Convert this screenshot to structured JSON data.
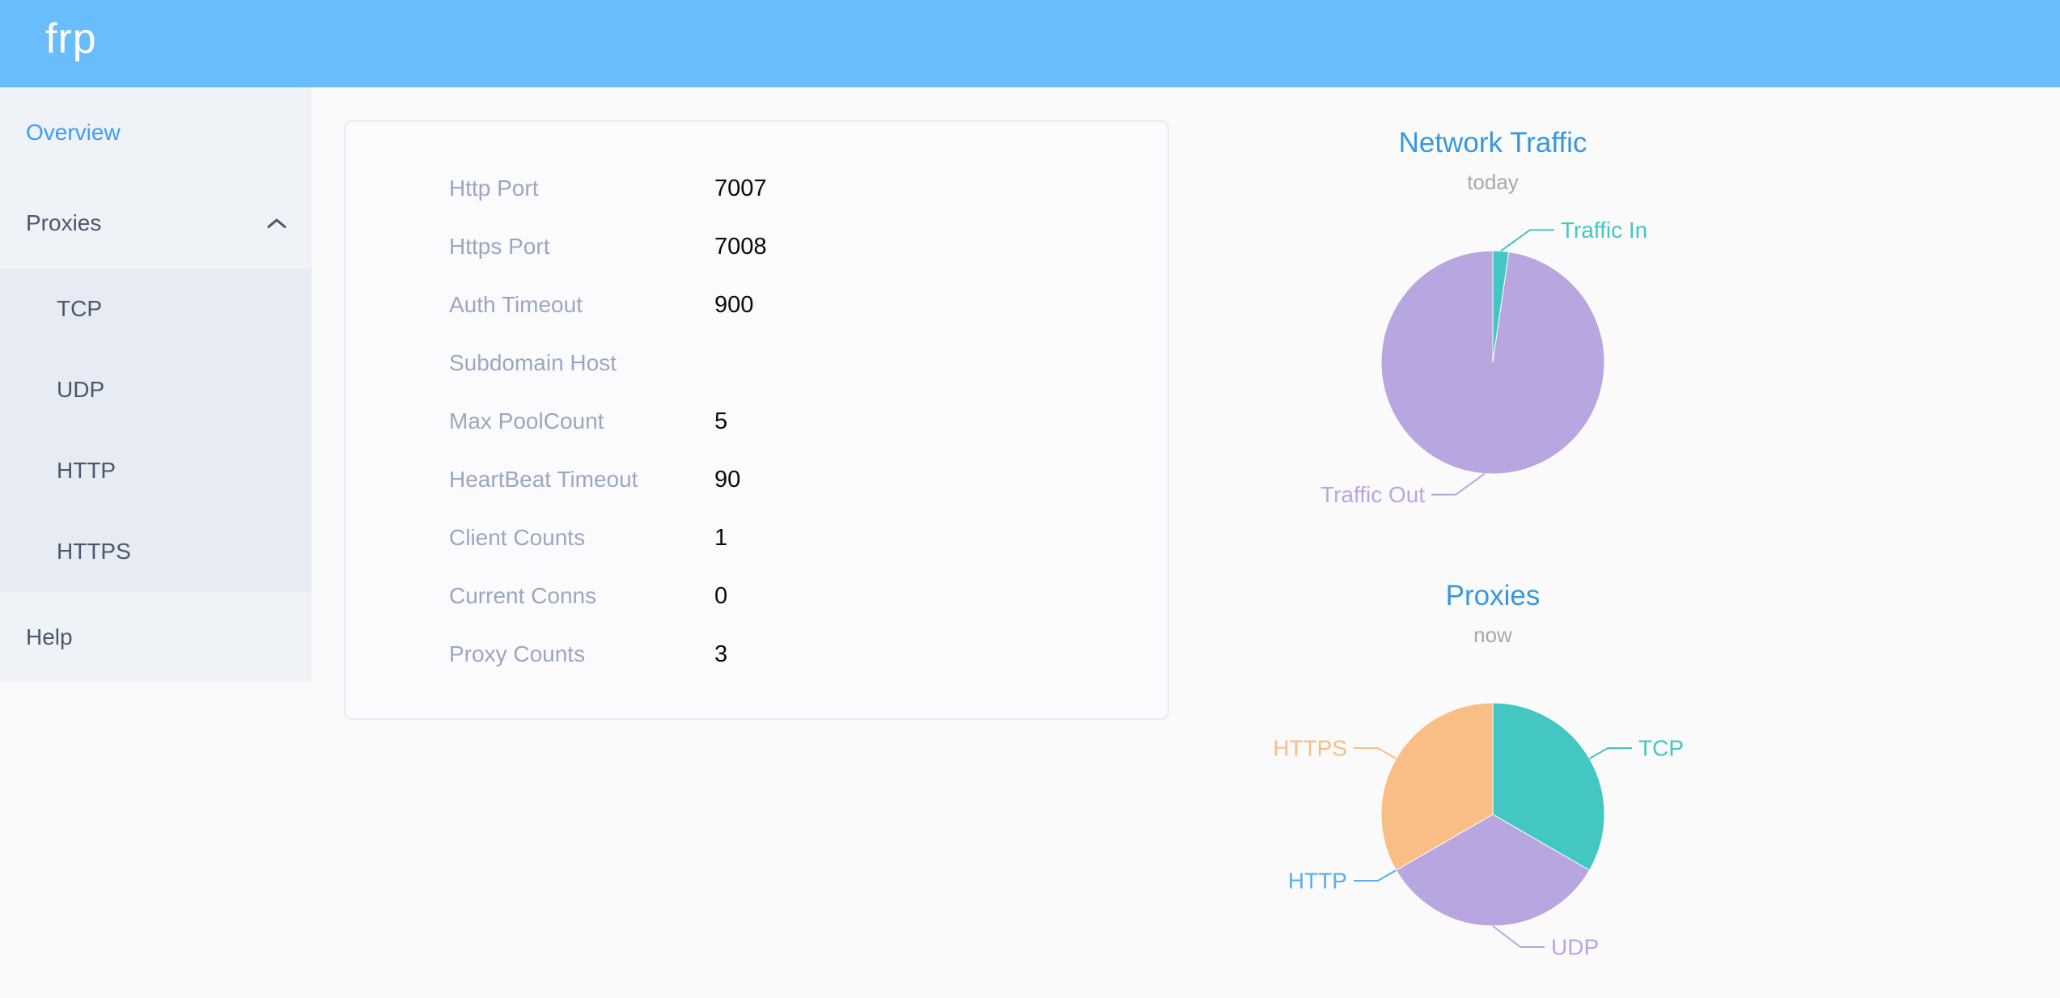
{
  "header": {
    "logo": "frp"
  },
  "sidebar": {
    "overview": "Overview",
    "proxies": "Proxies",
    "submenu": [
      "TCP",
      "UDP",
      "HTTP",
      "HTTPS"
    ],
    "help": "Help"
  },
  "overview_card": {
    "rows": [
      {
        "label": "Http Port",
        "value": "7007"
      },
      {
        "label": "Https Port",
        "value": "7008"
      },
      {
        "label": "Auth Timeout",
        "value": "900"
      },
      {
        "label": "Subdomain Host",
        "value": ""
      },
      {
        "label": "Max PoolCount",
        "value": "5"
      },
      {
        "label": "HeartBeat Timeout",
        "value": "90"
      },
      {
        "label": "Client Counts",
        "value": "1"
      },
      {
        "label": "Current Conns",
        "value": "0"
      },
      {
        "label": "Proxy Counts",
        "value": "3"
      }
    ]
  },
  "chart_data": [
    {
      "type": "pie",
      "title": "Network Traffic",
      "subtitle": "today",
      "legend_position": "none",
      "series": [
        {
          "name": "Traffic In",
          "value": 2.3,
          "color": "#44c6c3"
        },
        {
          "name": "Traffic Out",
          "value": 97.7,
          "color": "#b8a6e1"
        }
      ]
    },
    {
      "type": "pie",
      "title": "Proxies",
      "subtitle": "now",
      "legend_position": "none",
      "series": [
        {
          "name": "TCP",
          "value": 1,
          "color": "#44c6c3"
        },
        {
          "name": "UDP",
          "value": 1,
          "color": "#b8a6e1"
        },
        {
          "name": "HTTP",
          "value": 0,
          "color": "#58aef2"
        },
        {
          "name": "HTTPS",
          "value": 1,
          "color": "#f9bd86"
        }
      ]
    }
  ],
  "colors": {
    "header_bg": "#6abdfb",
    "sidebar_bg": "#eff2f7",
    "submenu_bg": "#e7ebf3",
    "active_menu_text": "#3d9df8",
    "menu_text": "#49586c",
    "card_label": "#9aa7bf",
    "chart_title": "#3897dd"
  }
}
